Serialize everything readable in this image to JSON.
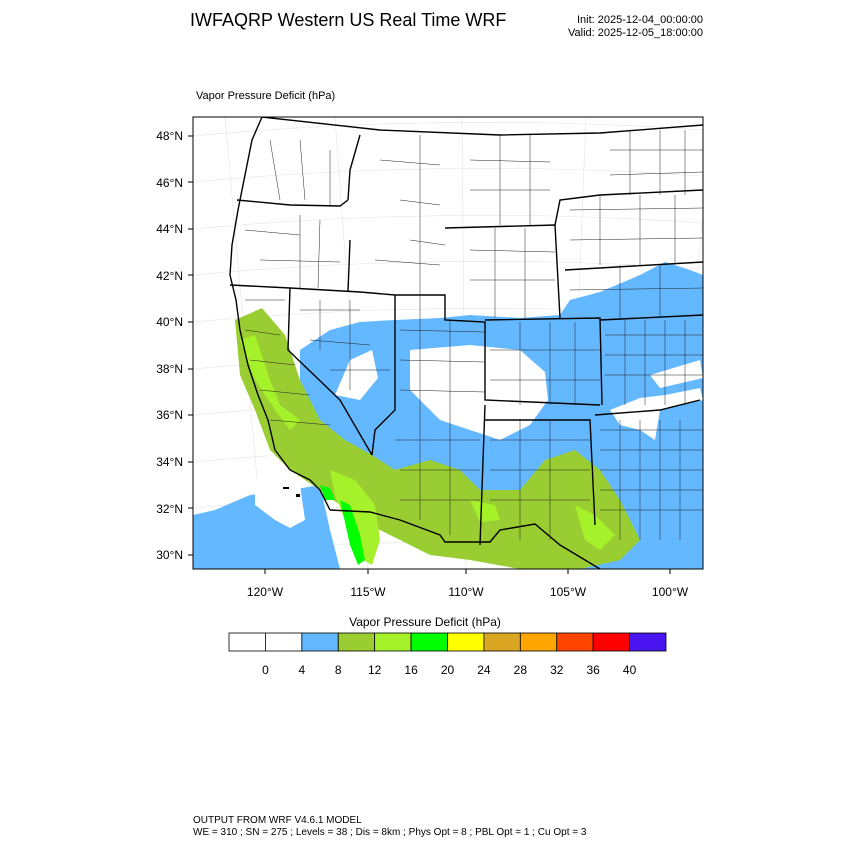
{
  "header": {
    "title": "IWFAQRP Western US Real Time WRF",
    "init": "Init: 2025-12-04_00:00:00",
    "valid": "Valid: 2025-12-05_18:00:00"
  },
  "map": {
    "subtitle": "Vapor Pressure Deficit   (hPa)",
    "lat_labels": [
      "48°N",
      "46°N",
      "44°N",
      "42°N",
      "40°N",
      "38°N",
      "36°N",
      "34°N",
      "32°N",
      "30°N"
    ],
    "lon_labels": [
      "120°W",
      "115°W",
      "110°W",
      "105°W",
      "100°W"
    ]
  },
  "colorbar": {
    "title": "Vapor Pressure Deficit  (hPa)",
    "labels": [
      "0",
      "4",
      "8",
      "12",
      "16",
      "20",
      "24",
      "28",
      "32",
      "36",
      "40"
    ],
    "colors": [
      "#ffffff",
      "#ffffff",
      "#63b8ff",
      "#9acd32",
      "#a6f22a",
      "#00ff00",
      "#ffff00",
      "#daa520",
      "#ffa500",
      "#ff4500",
      "#ff0000",
      "#4a14f0"
    ]
  },
  "footer": {
    "line1": "OUTPUT FROM WRF V4.6.1 MODEL",
    "line2": "WE = 310 ; SN = 275 ; Levels = 38 ; Dis = 8km ; Phys Opt = 8 ; PBL Opt = 1 ; Cu Opt = 3"
  }
}
